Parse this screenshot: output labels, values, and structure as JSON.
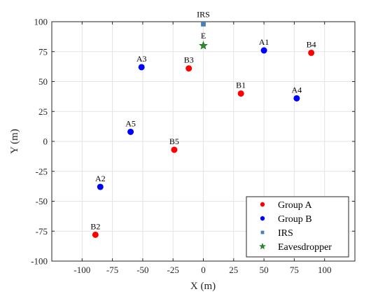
{
  "chart_data": {
    "type": "scatter",
    "xlabel": "X (m)",
    "ylabel": "Y (m)",
    "xlim": [
      -125,
      125
    ],
    "ylim": [
      -100,
      100
    ],
    "xticks": [
      -100,
      -75,
      -50,
      -25,
      0,
      25,
      50,
      75,
      100
    ],
    "yticks": [
      -100,
      -75,
      -50,
      -25,
      0,
      25,
      50,
      75,
      100
    ],
    "xtick_labels": [
      "-100",
      "-75",
      "-50",
      "-25",
      "0",
      "25",
      "50",
      "75",
      "100"
    ],
    "ytick_labels": [
      "-100",
      "-75",
      "-50",
      "-25",
      "0",
      "25",
      "50",
      "75",
      "100"
    ],
    "grid": true,
    "legend_position": "bottom-right",
    "series": [
      {
        "name": "Group A",
        "marker": "circle",
        "color": "#ff0000",
        "points": [
          {
            "label": "B1",
            "x": 31,
            "y": 40
          },
          {
            "label": "B2",
            "x": -89,
            "y": -78
          },
          {
            "label": "B3",
            "x": -12,
            "y": 61
          },
          {
            "label": "B4",
            "x": 89,
            "y": 74
          },
          {
            "label": "B5",
            "x": -24,
            "y": -7
          }
        ]
      },
      {
        "name": "Group B",
        "marker": "circle",
        "color": "#0000ff",
        "points": [
          {
            "label": "A1",
            "x": 50,
            "y": 76
          },
          {
            "label": "A2",
            "x": -85,
            "y": -38
          },
          {
            "label": "A3",
            "x": -51,
            "y": 62
          },
          {
            "label": "A4",
            "x": 77,
            "y": 36
          },
          {
            "label": "A5",
            "x": -60,
            "y": 8
          }
        ]
      },
      {
        "name": "IRS",
        "marker": "square",
        "color": "#4a7ebb",
        "points": [
          {
            "label": "IRS",
            "x": 0,
            "y": 98
          }
        ]
      },
      {
        "name": "Eavesdropper",
        "marker": "star",
        "color": "#2e8b2e",
        "points": [
          {
            "label": "E",
            "x": 0,
            "y": 80
          }
        ]
      }
    ]
  }
}
